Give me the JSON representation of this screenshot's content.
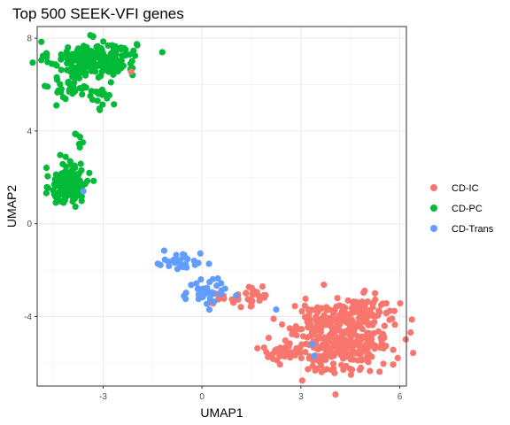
{
  "chart_data": {
    "type": "scatter",
    "title": "Top 500 SEEK-VFI genes",
    "xlabel": "UMAP1",
    "ylabel": "UMAP2",
    "xlim": [
      -5.0,
      6.2
    ],
    "ylim": [
      -7.0,
      8.5
    ],
    "x_ticks": [
      -3,
      0,
      3,
      6
    ],
    "y_ticks": [
      -4,
      0,
      4,
      8
    ],
    "grid": true,
    "legend_position": "right",
    "series": [
      {
        "name": "CD-IC",
        "color": "#F8766D",
        "clusters": [
          {
            "cx": 4.2,
            "cy": -4.9,
            "sx": 0.75,
            "sy": 0.75,
            "n": 340
          },
          {
            "cx": 5.0,
            "cy": -3.8,
            "sx": 0.45,
            "sy": 0.35,
            "n": 70
          },
          {
            "cx": 2.4,
            "cy": -5.6,
            "sx": 0.35,
            "sy": 0.2,
            "n": 35
          },
          {
            "cx": 1.5,
            "cy": -3.1,
            "sx": 0.3,
            "sy": 0.25,
            "n": 25
          },
          {
            "cx": 0.9,
            "cy": -3.2,
            "sx": 0.3,
            "sy": 0.15,
            "n": 10
          },
          {
            "cx": -2.15,
            "cy": 6.55,
            "sx": 0.03,
            "sy": 0.03,
            "n": 1
          }
        ]
      },
      {
        "name": "CD-PC",
        "color": "#00BA38",
        "clusters": [
          {
            "cx": -3.3,
            "cy": 7.1,
            "sx": 0.65,
            "sy": 0.38,
            "n": 230
          },
          {
            "cx": -3.9,
            "cy": 5.9,
            "sx": 0.35,
            "sy": 0.35,
            "n": 40
          },
          {
            "cx": -3.0,
            "cy": 5.4,
            "sx": 0.15,
            "sy": 0.25,
            "n": 12
          },
          {
            "cx": -4.0,
            "cy": 1.7,
            "sx": 0.28,
            "sy": 0.45,
            "n": 150
          },
          {
            "cx": -3.7,
            "cy": 3.4,
            "sx": 0.08,
            "sy": 0.25,
            "n": 6
          }
        ]
      },
      {
        "name": "CD-Trans",
        "color": "#619CFF",
        "clusters": [
          {
            "cx": -0.7,
            "cy": -1.7,
            "sx": 0.35,
            "sy": 0.22,
            "n": 30
          },
          {
            "cx": 0.1,
            "cy": -2.9,
            "sx": 0.32,
            "sy": 0.3,
            "n": 35
          },
          {
            "cx": -3.6,
            "cy": 1.4,
            "sx": 0.02,
            "sy": 0.02,
            "n": 1
          },
          {
            "cx": 2.25,
            "cy": -3.7,
            "sx": 0.02,
            "sy": 0.02,
            "n": 1
          },
          {
            "cx": 3.35,
            "cy": -5.2,
            "sx": 0.02,
            "sy": 0.02,
            "n": 1
          },
          {
            "cx": 3.4,
            "cy": -5.7,
            "sx": 0.02,
            "sy": 0.02,
            "n": 1
          },
          {
            "cx": 0.7,
            "cy": -2.8,
            "sx": 0.02,
            "sy": 0.02,
            "n": 1
          }
        ]
      }
    ]
  }
}
